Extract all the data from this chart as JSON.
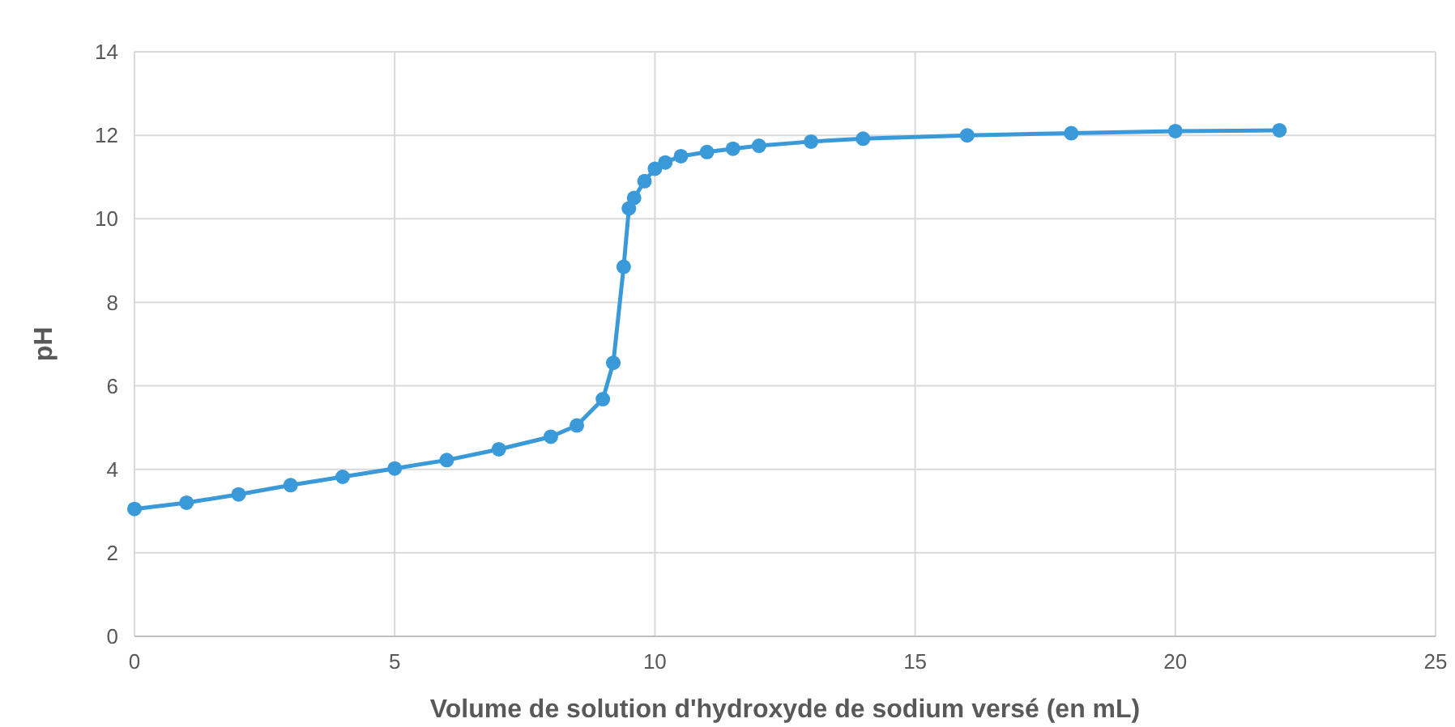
{
  "chart_data": {
    "type": "line",
    "xlabel": "Volume de solution d'hydroxyde de sodium versé (en mL)",
    "ylabel": "pH",
    "x": [
      0,
      1,
      2,
      3,
      4,
      5,
      6,
      7,
      8,
      8.5,
      9,
      9.2,
      9.4,
      9.5,
      9.6,
      9.8,
      10,
      10.2,
      10.5,
      11,
      11.5,
      12,
      13,
      14,
      16,
      18,
      20,
      22
    ],
    "series": [
      {
        "color": "#3a9ad9",
        "values": [
          3.05,
          3.2,
          3.4,
          3.62,
          3.82,
          4.02,
          4.22,
          4.48,
          4.78,
          5.05,
          5.68,
          6.55,
          8.85,
          10.25,
          10.5,
          10.9,
          11.2,
          11.35,
          11.5,
          11.6,
          11.68,
          11.75,
          11.85,
          11.92,
          12.0,
          12.05,
          12.1,
          12.12
        ]
      }
    ],
    "xlim": [
      0,
      25
    ],
    "xticks": [
      0,
      5,
      10,
      15,
      20,
      25
    ],
    "ylim": [
      0,
      14
    ],
    "yticks": [
      0,
      2,
      4,
      6,
      8,
      10,
      12,
      14
    ],
    "grid": true,
    "marker": "circle",
    "line_style": "solid"
  }
}
